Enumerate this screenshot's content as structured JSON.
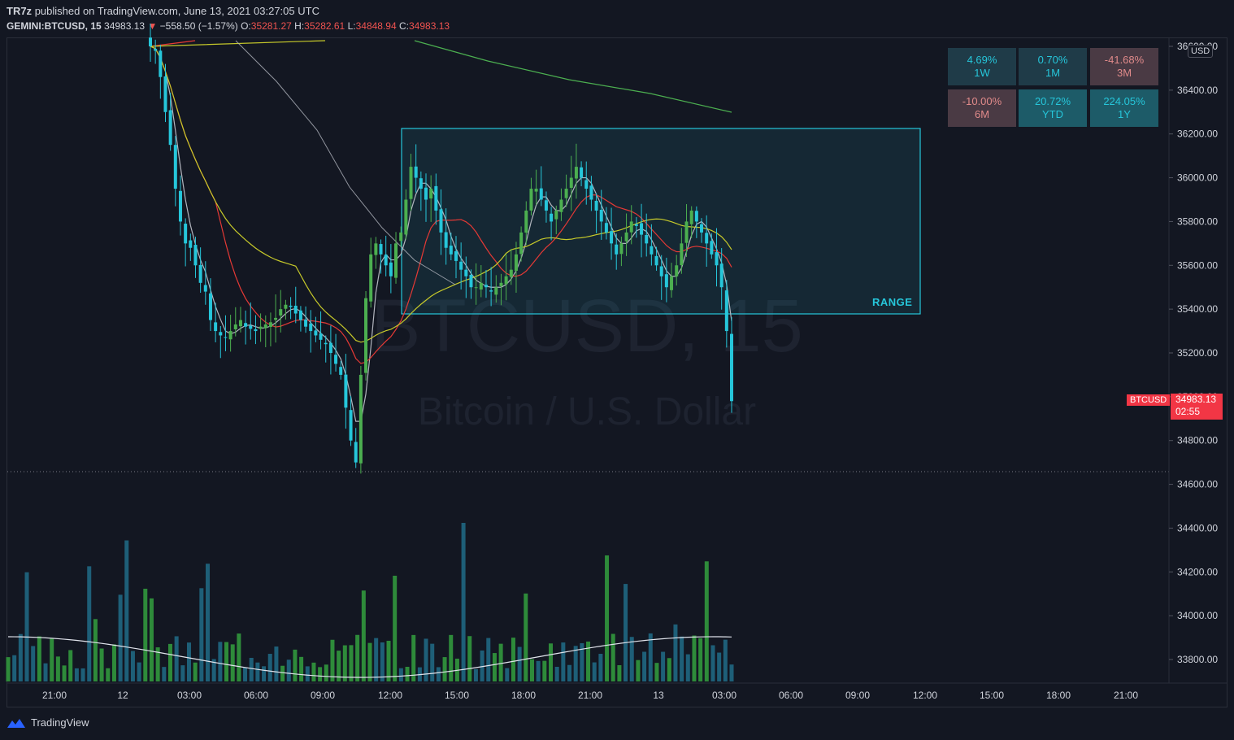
{
  "header": {
    "author": "TR7z",
    "published": "published on TradingView.com, June 13, 2021 03:27:05 UTC",
    "symbol": "GEMINI:BTCUSD, 15",
    "last": "34983.13",
    "change": "−558.50 (−1.57%)",
    "open_label": "O:",
    "open": "35281.27",
    "high_label": "H:",
    "high": "35282.61",
    "low_label": "L:",
    "low": "34848.94",
    "close_label": "C:",
    "close": "34983.13"
  },
  "watermark": {
    "line1": "BTCUSD, 15",
    "line2": "Bitcoin / U.S. Dollar"
  },
  "performance": [
    {
      "value": "4.69%",
      "period": "1W",
      "tone": "pos"
    },
    {
      "value": "0.70%",
      "period": "1M",
      "tone": "pos"
    },
    {
      "value": "-41.68%",
      "period": "3M",
      "tone": "neg"
    },
    {
      "value": "-10.00%",
      "period": "6M",
      "tone": "neg"
    },
    {
      "value": "20.72%",
      "period": "YTD",
      "tone": "pos2"
    },
    {
      "value": "224.05%",
      "period": "1Y",
      "tone": "pos2"
    }
  ],
  "range_label": "RANGE",
  "price_axis": {
    "currency": "USD",
    "ticks": [
      "36600.00",
      "36400.00",
      "36200.00",
      "36000.00",
      "35800.00",
      "35600.00",
      "35400.00",
      "35200.00",
      "35000.00",
      "34800.00",
      "34600.00",
      "34400.00",
      "34200.00",
      "34000.00",
      "33800.00"
    ]
  },
  "last_price_label": {
    "symbol": "BTCUSD",
    "price": "34983.13",
    "countdown": "02:55"
  },
  "time_axis": [
    "21:00",
    "12",
    "03:00",
    "06:00",
    "09:00",
    "12:00",
    "15:00",
    "18:00",
    "21:00",
    "13",
    "03:00",
    "06:00",
    "09:00",
    "12:00",
    "15:00",
    "18:00",
    "21:00"
  ],
  "footer": {
    "brand": "TradingView"
  },
  "colors": {
    "up": "#4caf50",
    "down": "#26c6da",
    "ma_fast": "#b2b5be",
    "ma_red": "#e53935",
    "ma_yellow": "#c6c92a",
    "ma_green": "#4caf50",
    "range": "#26c6da"
  },
  "chart_data": {
    "type": "candlestick",
    "symbol": "GEMINI:BTCUSD",
    "interval": "15",
    "ylim": [
      33700,
      36650
    ],
    "price_ticks": [
      36600,
      36400,
      36200,
      36000,
      35800,
      35600,
      35400,
      35200,
      35000,
      34800,
      34600,
      34400,
      34200,
      34000,
      33800
    ],
    "time_labels": [
      "21:00",
      "12",
      "03:00",
      "06:00",
      "09:00",
      "12:00",
      "15:00",
      "18:00",
      "21:00",
      "13",
      "03:00",
      "06:00",
      "09:00",
      "12:00",
      "15:00",
      "18:00",
      "21:00"
    ],
    "range_box": {
      "high": 36230,
      "low": 35380,
      "label": "RANGE"
    },
    "low_marker": 34660,
    "last": {
      "price": 34983.13,
      "countdown": "02:55"
    },
    "closes": [
      36600,
      36580,
      36460,
      36300,
      36150,
      35950,
      35800,
      35700,
      35680,
      35600,
      35520,
      35480,
      35350,
      35300,
      35280,
      35270,
      35300,
      35330,
      35350,
      35320,
      35310,
      35300,
      35320,
      35330,
      35340,
      35360,
      35400,
      35420,
      35410,
      35380,
      35350,
      35320,
      35300,
      35280,
      35260,
      35240,
      35200,
      35150,
      35100,
      34950,
      34800,
      34700,
      35100,
      35450,
      35650,
      35700,
      35650,
      35600,
      35550,
      35700,
      35750,
      35900,
      36050,
      36000,
      35950,
      35900,
      35950,
      35850,
      35750,
      35680,
      35650,
      35620,
      35580,
      35550,
      35500,
      35500,
      35520,
      35500,
      35480,
      35500,
      35520,
      35550,
      35580,
      35650,
      35750,
      35850,
      35950,
      35950,
      35900,
      35850,
      35800,
      35850,
      35900,
      35950,
      36000,
      36050,
      36000,
      35950,
      35900,
      35850,
      35800,
      35750,
      35700,
      35650,
      35700,
      35750,
      35800,
      35780,
      35740,
      35700,
      35650,
      35600,
      35550,
      35500,
      35550,
      35600,
      35700,
      35800,
      35850,
      35800,
      35750,
      35700,
      35650,
      35600,
      35500,
      35300,
      34980
    ],
    "volume_bars": 117,
    "moving_averages": [
      "fast (gray)",
      "red",
      "yellow",
      "green"
    ]
  }
}
